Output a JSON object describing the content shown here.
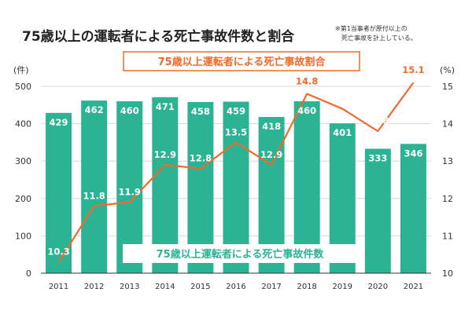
{
  "chart_data": {
    "type": "bar",
    "title": "75歳以上の運転者による死亡事故件数と割合",
    "note_lines": [
      "※第1当事者が原付以上の",
      "死亡事故を計上している。"
    ],
    "categories": [
      "2011",
      "2012",
      "2013",
      "2014",
      "2015",
      "2016",
      "2017",
      "2018",
      "2019",
      "2020",
      "2021"
    ],
    "series": [
      {
        "name": "75歳以上運転者による死亡事故件数",
        "type": "bar",
        "axis": "left",
        "color": "#2bb394",
        "values": [
          429,
          462,
          460,
          471,
          458,
          459,
          418,
          460,
          401,
          333,
          346
        ]
      },
      {
        "name": "75歳以上運転者による死亡事故割合",
        "type": "line",
        "axis": "right",
        "color": "#f2692a",
        "values": [
          10.3,
          11.8,
          11.9,
          12.9,
          12.8,
          13.5,
          12.9,
          14.8,
          14.4,
          13.8,
          15.1
        ]
      }
    ],
    "left_axis": {
      "unit_label": "(件)",
      "ylim": [
        0,
        500
      ],
      "ticks": [
        0,
        100,
        200,
        300,
        400,
        500
      ],
      "tick_labels": [
        "0",
        "100",
        "200",
        "300",
        "400",
        "500"
      ]
    },
    "right_axis": {
      "unit_label": "(%)",
      "ylim": [
        10,
        15
      ],
      "ticks": [
        10,
        11,
        12,
        13,
        14,
        15
      ],
      "tick_labels": [
        "10",
        "11",
        "12",
        "13",
        "14",
        "15"
      ]
    },
    "legend": {
      "line_label": "75歳以上運転者による死亡事故割合",
      "bar_label": "75歳以上運転者による死亡事故件数"
    },
    "grid": true,
    "colors": {
      "axis_text": "#333333",
      "grid": "#cfcfcf",
      "bar_label": "#ffffff",
      "title": "#222222",
      "legend_border": "#f2692a"
    }
  }
}
